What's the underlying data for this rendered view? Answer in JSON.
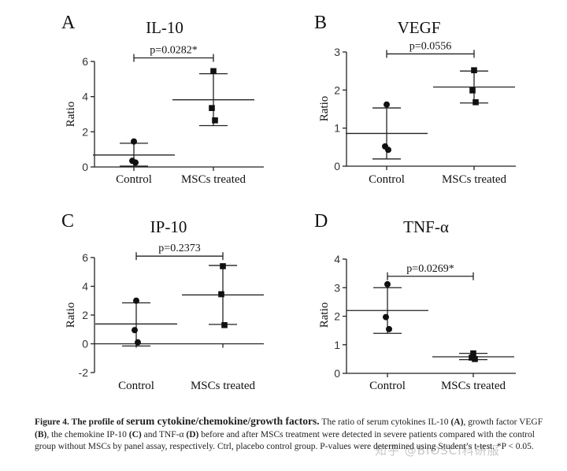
{
  "chart_data": [
    {
      "type": "scatter",
      "panel_letter": "A",
      "title": "IL-10",
      "ylabel": "Ratio",
      "categories": [
        "Control",
        "MSCs treated"
      ],
      "ylim": [
        0,
        6
      ],
      "yticks": [
        0,
        2,
        4,
        6
      ],
      "series": [
        {
          "name": "Control",
          "marker": "circle",
          "points": [
            1.45,
            0.35,
            0.25
          ],
          "mean": 0.68,
          "sd_low": 0.05,
          "sd_high": 1.35
        },
        {
          "name": "MSCs treated",
          "marker": "square",
          "points": [
            5.45,
            3.35,
            2.65
          ],
          "mean": 3.82,
          "sd_low": 2.35,
          "sd_high": 5.3
        }
      ],
      "annotation": "p=0.0282*",
      "bracket_y": 6.2
    },
    {
      "type": "scatter",
      "panel_letter": "B",
      "title": "VEGF",
      "ylabel": "Ratio",
      "categories": [
        "Control",
        "MSCs treated"
      ],
      "ylim": [
        0,
        3
      ],
      "yticks": [
        0,
        1,
        2,
        3
      ],
      "series": [
        {
          "name": "Control",
          "marker": "circle",
          "points": [
            1.62,
            0.52,
            0.43
          ],
          "mean": 0.86,
          "sd_low": 0.19,
          "sd_high": 1.53
        },
        {
          "name": "MSCs treated",
          "marker": "square",
          "points": [
            2.52,
            1.99,
            1.68
          ],
          "mean": 2.08,
          "sd_low": 1.66,
          "sd_high": 2.5
        }
      ],
      "annotation": "p=0.0556",
      "bracket_y": 2.95
    },
    {
      "type": "scatter",
      "panel_letter": "C",
      "title": "IP-10",
      "ylabel": "Ratio",
      "categories": [
        "Control",
        "MSCs treated"
      ],
      "ylim": [
        -2,
        6
      ],
      "yticks": [
        -2,
        0,
        2,
        4,
        6
      ],
      "series": [
        {
          "name": "Control",
          "marker": "circle",
          "points": [
            3.0,
            0.95,
            0.1
          ],
          "mean": 1.38,
          "sd_low": -0.15,
          "sd_high": 2.85
        },
        {
          "name": "MSCs treated",
          "marker": "square",
          "points": [
            5.4,
            3.45,
            1.3
          ],
          "mean": 3.4,
          "sd_low": 1.35,
          "sd_high": 5.45
        }
      ],
      "annotation": "p=0.2373",
      "bracket_y": 6.1
    },
    {
      "type": "scatter",
      "panel_letter": "D",
      "title": "TNF-α",
      "ylabel": "Ratio",
      "categories": [
        "Control",
        "MSCs treated"
      ],
      "ylim": [
        0,
        4
      ],
      "yticks": [
        0,
        1,
        2,
        3,
        4
      ],
      "series": [
        {
          "name": "Control",
          "marker": "circle",
          "points": [
            3.12,
            1.97,
            1.55
          ],
          "mean": 2.2,
          "sd_low": 1.4,
          "sd_high": 3.0
        },
        {
          "name": "MSCs treated",
          "marker": "square",
          "points": [
            0.7,
            0.55,
            0.5
          ],
          "mean": 0.58,
          "sd_low": 0.48,
          "sd_high": 0.7
        }
      ],
      "annotation": "p=0.0269*",
      "bracket_y": 3.4
    }
  ],
  "caption": {
    "figure_label": "Figure 4. The profile of",
    "figure_label_big": "serum cytokine/chemokine/growth factors.",
    "text_1": " The ratio of serum cytokines IL-10 ",
    "ref_a": "(A)",
    "text_2": ", growth factor VEGF ",
    "ref_b": "(B)",
    "text_3": ", the chemokine IP-10 ",
    "ref_c": "(C)",
    "text_4": " and TNF-α ",
    "ref_d": "(D)",
    "text_5": " before and after MSCs treatment were detected in severe patients compared with the control group without MSCs by panel assay, respectively. Ctrl, placebo control group. P-values were determined using Student’s t-test. *P < 0.05."
  },
  "watermark": "知乎 @BIOSCI科研服"
}
